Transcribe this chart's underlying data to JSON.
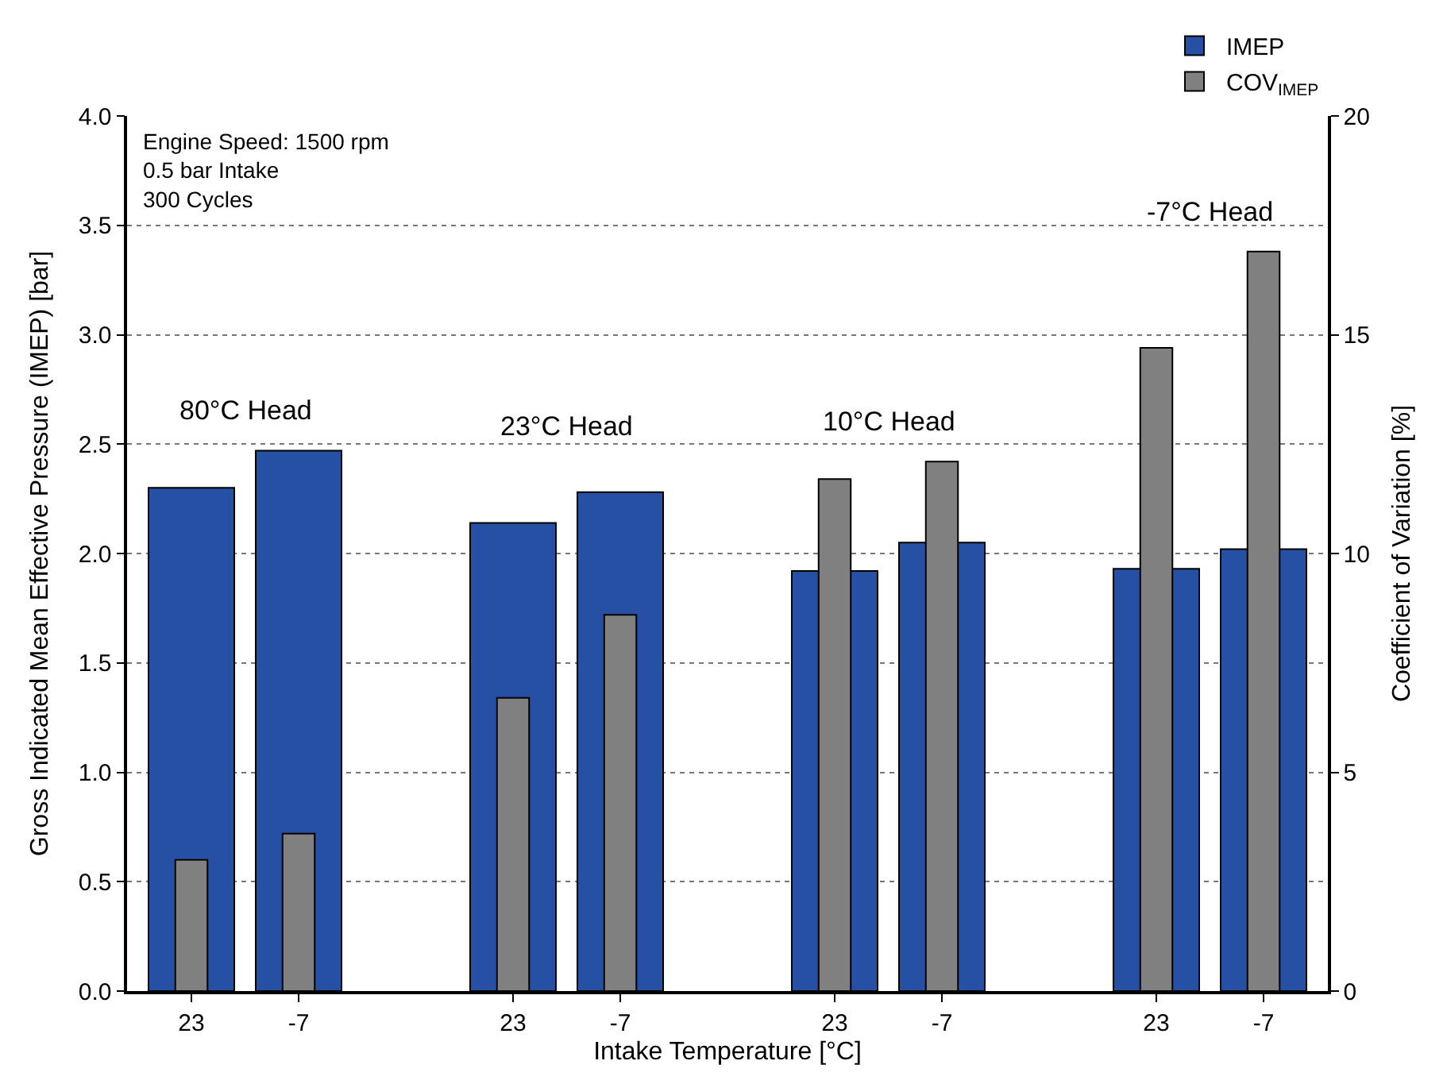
{
  "chart_data": {
    "type": "bar",
    "xlabel": "Intake Temperature [°C]",
    "ylabel": "Gross Indicated Mean Effective Pressure (IMEP) [bar]",
    "y2label": "Coefficient of Variation [%]",
    "categories": [
      "23",
      "-7",
      null,
      "23",
      "-7",
      null,
      "23",
      "-7",
      null,
      "23",
      "-7"
    ],
    "series": [
      {
        "name": "IMEP",
        "color": "#2550a3",
        "values": [
          2.3,
          2.47,
          null,
          2.14,
          2.28,
          null,
          1.92,
          2.05,
          null,
          1.93,
          2.02
        ]
      },
      {
        "name": "COV$_{IMEP}$",
        "color": "#808080",
        "axis": "y2",
        "values": [
          3.0,
          3.6,
          null,
          6.7,
          8.6,
          null,
          11.7,
          12.1,
          null,
          14.7,
          16.9
        ]
      }
    ],
    "ylim": [
      0,
      4.0
    ],
    "yticks": [
      {
        "value": 0,
        "label": "0.0"
      },
      0.5,
      {
        "value": 1,
        "label": "1.0"
      },
      1.5,
      {
        "value": 2,
        "label": "2.0"
      },
      2.5,
      {
        "value": 3,
        "label": "3.0"
      },
      3.5,
      {
        "value": 4,
        "label": "4.0"
      }
    ],
    "y2lim": [
      0,
      20
    ],
    "y2ticks": [
      0,
      5,
      10,
      15,
      20
    ],
    "annotations": [
      "Engine Speed: 1500 rpm\n0.5 bar Intake\n300 Cycles",
      "80°C Head",
      "23°C Head",
      "10°C Head",
      "-7°C Head"
    ],
    "grid": "y",
    "legend": "top right"
  }
}
